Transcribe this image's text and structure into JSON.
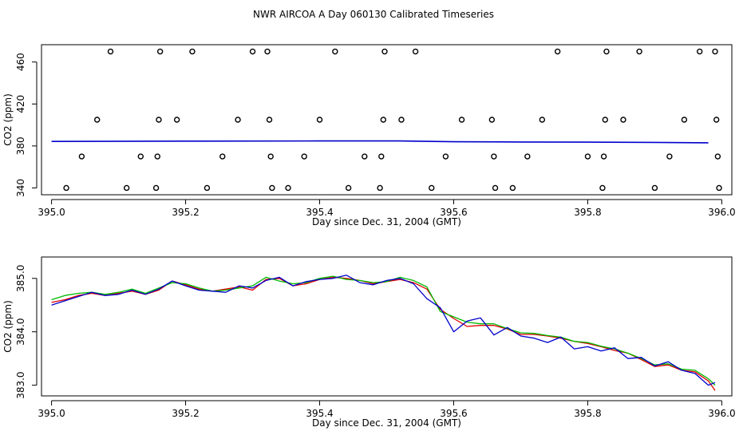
{
  "figure_title": "NWR AIRCOA A  Day 060130  Calibrated Timeseries",
  "colors": {
    "red": "#e00000",
    "green": "#00bb00",
    "blue": "#0000cc",
    "axis": "#000000"
  },
  "chart_data": [
    {
      "type": "scatter",
      "title": "",
      "xlabel": "Day since Dec. 31, 2004 (GMT)",
      "ylabel": "CO2 (ppm)",
      "xlim": [
        394.985,
        396.015
      ],
      "ylim": [
        333.5,
        476.5
      ],
      "xticks": [
        395.0,
        395.2,
        395.4,
        395.6,
        395.8,
        396.0
      ],
      "xtick_labels": [
        "395.0",
        "395.2",
        "395.4",
        "395.6",
        "395.8",
        "396.0"
      ],
      "yticks": [
        340,
        380,
        420,
        460
      ],
      "ytick_labels": [
        "340",
        "380",
        "420",
        "460"
      ],
      "series": [
        {
          "name": "flag points",
          "marker": "open-circle",
          "points": [
            [
              395.022,
              340
            ],
            [
              395.045,
              370
            ],
            [
              395.068,
              405
            ],
            [
              395.088,
              470
            ],
            [
              395.112,
              340
            ],
            [
              395.133,
              370
            ],
            [
              395.156,
              340
            ],
            [
              395.158,
              370
            ],
            [
              395.16,
              405
            ],
            [
              395.162,
              470
            ],
            [
              395.187,
              405
            ],
            [
              395.21,
              470
            ],
            [
              395.232,
              340
            ],
            [
              395.255,
              370
            ],
            [
              395.278,
              405
            ],
            [
              395.3,
              470
            ],
            [
              395.322,
              470
            ],
            [
              395.325,
              405
            ],
            [
              395.327,
              370
            ],
            [
              395.329,
              340
            ],
            [
              395.353,
              340
            ],
            [
              395.377,
              370
            ],
            [
              395.4,
              405
            ],
            [
              395.423,
              470
            ],
            [
              395.443,
              340
            ],
            [
              395.467,
              370
            ],
            [
              395.49,
              340
            ],
            [
              395.492,
              370
            ],
            [
              395.495,
              405
            ],
            [
              395.497,
              470
            ],
            [
              395.522,
              405
            ],
            [
              395.543,
              470
            ],
            [
              395.567,
              340
            ],
            [
              395.588,
              370
            ],
            [
              395.612,
              405
            ],
            [
              395.657,
              405
            ],
            [
              395.66,
              370
            ],
            [
              395.662,
              340
            ],
            [
              395.688,
              340
            ],
            [
              395.71,
              370
            ],
            [
              395.732,
              405
            ],
            [
              395.755,
              470
            ],
            [
              395.8,
              370
            ],
            [
              395.822,
              340
            ],
            [
              395.824,
              370
            ],
            [
              395.826,
              405
            ],
            [
              395.828,
              470
            ],
            [
              395.853,
              405
            ],
            [
              395.877,
              470
            ],
            [
              395.9,
              340
            ],
            [
              395.922,
              370
            ],
            [
              395.944,
              405
            ],
            [
              395.967,
              470
            ],
            [
              395.99,
              470
            ],
            [
              395.992,
              405
            ],
            [
              395.994,
              370
            ],
            [
              395.996,
              340
            ]
          ]
        },
        {
          "name": "CO2 series (blue)",
          "marker": "line",
          "color": "#0000cc",
          "points": [
            [
              395.0,
              384.3
            ],
            [
              395.2,
              384.6
            ],
            [
              395.4,
              384.8
            ],
            [
              395.52,
              384.8
            ],
            [
              395.6,
              384.0
            ],
            [
              395.7,
              383.8
            ],
            [
              395.8,
              383.6
            ],
            [
              395.9,
              383.4
            ],
            [
              395.98,
              383.0
            ]
          ]
        }
      ]
    },
    {
      "type": "line",
      "title": "",
      "xlabel": "Day since Dec. 31, 2004 (GMT)",
      "ylabel": "CO2 (ppm)",
      "xlim": [
        394.985,
        396.015
      ],
      "ylim": [
        382.8,
        385.4
      ],
      "xticks": [
        395.0,
        395.2,
        395.4,
        395.6,
        395.8,
        396.0
      ],
      "xtick_labels": [
        "395.0",
        "395.2",
        "395.4",
        "395.6",
        "395.8",
        "396.0"
      ],
      "yticks": [
        383.0,
        384.0,
        385.0
      ],
      "ytick_labels": [
        "383.0",
        "384.0",
        "385.0"
      ],
      "x": [
        395.0,
        395.02,
        395.04,
        395.06,
        395.08,
        395.1,
        395.12,
        395.14,
        395.16,
        395.18,
        395.2,
        395.22,
        395.24,
        395.26,
        395.28,
        395.3,
        395.32,
        395.34,
        395.36,
        395.38,
        395.4,
        395.42,
        395.44,
        395.46,
        395.48,
        395.5,
        395.52,
        395.54,
        395.56,
        395.58,
        395.6,
        395.62,
        395.64,
        395.66,
        395.68,
        395.7,
        395.72,
        395.74,
        395.76,
        395.78,
        395.8,
        395.82,
        395.84,
        395.86,
        395.88,
        395.9,
        395.92,
        395.94,
        395.96,
        395.98,
        395.99
      ],
      "series": [
        {
          "name": "red",
          "color": "#e00000",
          "values": [
            384.55,
            384.6,
            384.68,
            384.72,
            384.68,
            384.72,
            384.76,
            384.7,
            384.78,
            384.95,
            384.88,
            384.8,
            384.76,
            384.8,
            384.84,
            384.78,
            384.98,
            385.0,
            384.86,
            384.9,
            384.98,
            385.02,
            385.0,
            384.96,
            384.9,
            384.94,
            384.98,
            384.92,
            384.8,
            384.42,
            384.25,
            384.1,
            384.12,
            384.12,
            384.05,
            383.95,
            383.95,
            383.92,
            383.88,
            383.82,
            383.78,
            383.72,
            383.65,
            383.6,
            383.48,
            383.35,
            383.38,
            383.28,
            383.25,
            383.08,
            382.9
          ]
        },
        {
          "name": "green",
          "color": "#00bb00",
          "values": [
            384.6,
            384.68,
            384.72,
            384.74,
            384.7,
            384.74,
            384.8,
            384.72,
            384.82,
            384.92,
            384.9,
            384.82,
            384.76,
            384.78,
            384.82,
            384.86,
            385.02,
            384.95,
            384.9,
            384.92,
            385.0,
            385.04,
            384.98,
            384.96,
            384.92,
            384.94,
            385.02,
            384.96,
            384.84,
            384.38,
            384.28,
            384.18,
            384.15,
            384.15,
            384.06,
            383.98,
            383.97,
            383.93,
            383.9,
            383.82,
            383.8,
            383.73,
            383.68,
            383.6,
            383.5,
            383.38,
            383.4,
            383.3,
            383.28,
            383.12,
            383.0
          ]
        },
        {
          "name": "blue",
          "color": "#0000cc",
          "values": [
            384.5,
            384.58,
            384.66,
            384.74,
            384.68,
            384.7,
            384.78,
            384.7,
            384.8,
            384.95,
            384.86,
            384.78,
            384.76,
            384.74,
            384.86,
            384.82,
            384.96,
            385.02,
            384.86,
            384.94,
            384.98,
            385.0,
            385.06,
            384.92,
            384.88,
            384.96,
            385.0,
            384.9,
            384.62,
            384.45,
            384.0,
            384.2,
            384.26,
            383.94,
            384.08,
            383.92,
            383.88,
            383.8,
            383.9,
            383.68,
            383.72,
            383.64,
            383.7,
            383.5,
            383.52,
            383.36,
            383.44,
            383.28,
            383.22,
            383.0,
            383.05
          ]
        }
      ]
    }
  ]
}
